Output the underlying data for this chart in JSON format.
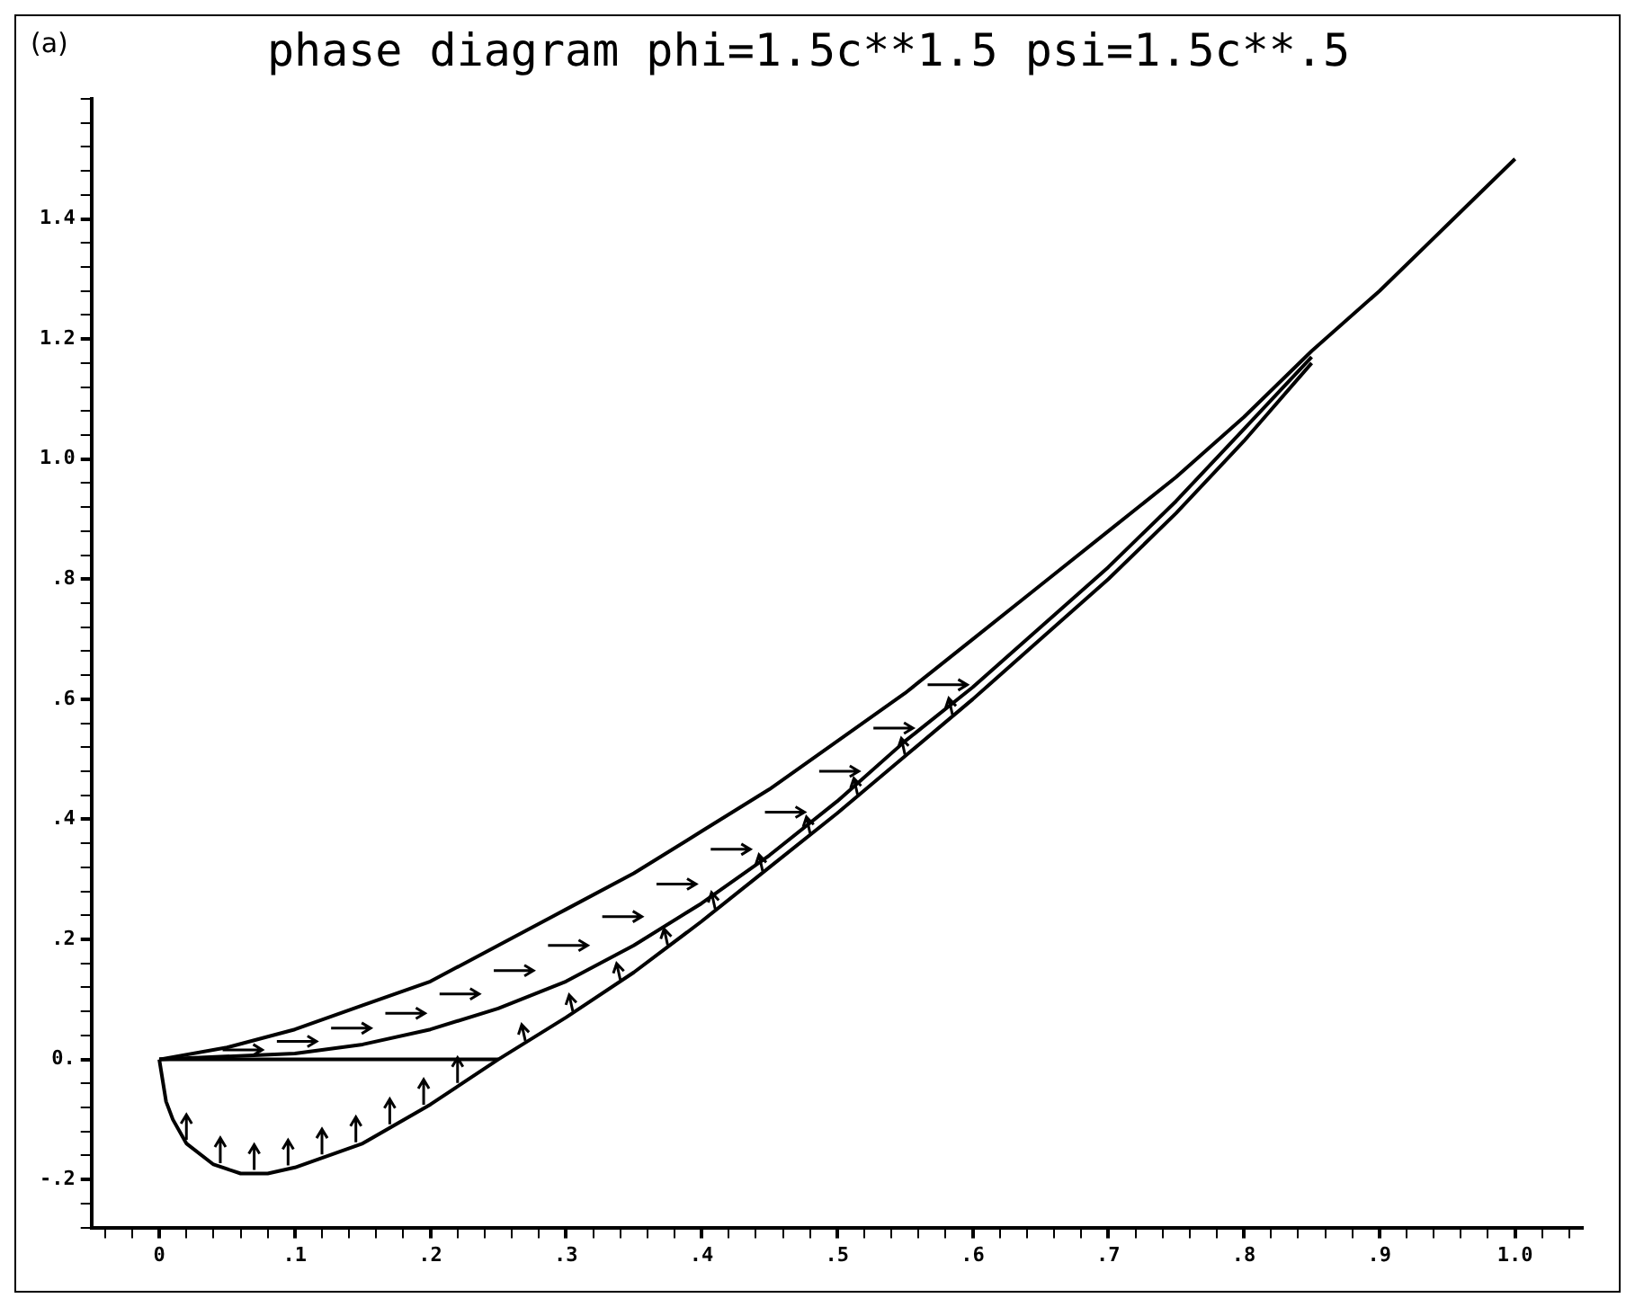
{
  "chart_data": {
    "type": "line",
    "title": "phase diagram phi=1.5c**1.5 psi=1.5c**.5",
    "annotations": [
      "(a)"
    ],
    "series": [
      {
        "color": "#000000",
        "x": [
          0,
          0.05,
          0.1,
          0.15,
          0.2,
          0.25,
          0.3,
          0.35,
          0.4,
          0.45,
          0.5,
          0.55,
          0.6,
          0.65,
          0.7,
          0.75,
          0.8,
          0.85,
          0.9,
          0.95,
          1.0
        ],
        "values": [
          0,
          0.02,
          0.05,
          0.09,
          0.13,
          0.19,
          0.25,
          0.31,
          0.38,
          0.45,
          0.53,
          0.61,
          0.7,
          0.79,
          0.88,
          0.97,
          1.07,
          1.18,
          1.28,
          1.39,
          1.5
        ]
      },
      {
        "color": "#000000",
        "x": [
          0,
          0.1,
          0.15,
          0.2,
          0.25,
          0.3,
          0.35,
          0.4,
          0.45,
          0.5,
          0.55,
          0.6,
          0.65,
          0.7,
          0.75,
          0.8,
          0.85
        ],
        "values": [
          0,
          0.01,
          0.025,
          0.05,
          0.085,
          0.13,
          0.19,
          0.26,
          0.34,
          0.43,
          0.53,
          0.62,
          0.72,
          0.82,
          0.93,
          1.05,
          1.17
        ]
      },
      {
        "color": "#000000",
        "x": [
          0,
          0.005,
          0.01,
          0.02,
          0.04,
          0.06,
          0.08,
          0.1,
          0.15,
          0.2,
          0.25,
          0.3,
          0.35,
          0.4,
          0.45,
          0.5,
          0.55,
          0.6,
          0.65,
          0.7,
          0.75,
          0.8,
          0.85
        ],
        "values": [
          0,
          -0.07,
          -0.1,
          -0.14,
          -0.175,
          -0.19,
          -0.19,
          -0.18,
          -0.14,
          -0.075,
          0,
          0.07,
          0.145,
          0.23,
          0.32,
          0.41,
          0.505,
          0.6,
          0.7,
          0.8,
          0.91,
          1.03,
          1.16
        ]
      },
      {
        "color": "#000000",
        "x": [
          0,
          0.25
        ],
        "values": [
          0,
          0
        ]
      }
    ],
    "xlim": [
      -0.05,
      1.05
    ],
    "ylim": [
      -0.28,
      1.6
    ],
    "xticks": [
      {
        "value": -0.04,
        "label": null
      },
      {
        "value": -0.02,
        "label": null
      },
      {
        "value": 0,
        "label": "0"
      },
      {
        "value": 0.02,
        "label": null
      },
      {
        "value": 0.04,
        "label": null
      },
      {
        "value": 0.06,
        "label": null
      },
      {
        "value": 0.08,
        "label": null
      },
      {
        "value": 0.1,
        "label": ".1"
      },
      {
        "value": 0.12,
        "label": null
      },
      {
        "value": 0.14,
        "label": null
      },
      {
        "value": 0.16,
        "label": null
      },
      {
        "value": 0.18,
        "label": null
      },
      {
        "value": 0.2,
        "label": ".2"
      },
      {
        "value": 0.22,
        "label": null
      },
      {
        "value": 0.24,
        "label": null
      },
      {
        "value": 0.26,
        "label": null
      },
      {
        "value": 0.28,
        "label": null
      },
      {
        "value": 0.3,
        "label": ".3"
      },
      {
        "value": 0.32,
        "label": null
      },
      {
        "value": 0.34,
        "label": null
      },
      {
        "value": 0.36,
        "label": null
      },
      {
        "value": 0.38,
        "label": null
      },
      {
        "value": 0.4,
        "label": ".4"
      },
      {
        "value": 0.42,
        "label": null
      },
      {
        "value": 0.44,
        "label": null
      },
      {
        "value": 0.46,
        "label": null
      },
      {
        "value": 0.48,
        "label": null
      },
      {
        "value": 0.5,
        "label": ".5"
      },
      {
        "value": 0.52,
        "label": null
      },
      {
        "value": 0.54,
        "label": null
      },
      {
        "value": 0.56,
        "label": null
      },
      {
        "value": 0.58,
        "label": null
      },
      {
        "value": 0.6,
        "label": ".6"
      },
      {
        "value": 0.62,
        "label": null
      },
      {
        "value": 0.64,
        "label": null
      },
      {
        "value": 0.66,
        "label": null
      },
      {
        "value": 0.68,
        "label": null
      },
      {
        "value": 0.7,
        "label": ".7"
      },
      {
        "value": 0.72,
        "label": null
      },
      {
        "value": 0.74,
        "label": null
      },
      {
        "value": 0.76,
        "label": null
      },
      {
        "value": 0.78,
        "label": null
      },
      {
        "value": 0.8,
        "label": ".8"
      },
      {
        "value": 0.82,
        "label": null
      },
      {
        "value": 0.84,
        "label": null
      },
      {
        "value": 0.86,
        "label": null
      },
      {
        "value": 0.88,
        "label": null
      },
      {
        "value": 0.9,
        "label": ".9"
      },
      {
        "value": 0.92,
        "label": null
      },
      {
        "value": 0.94,
        "label": null
      },
      {
        "value": 0.96,
        "label": null
      },
      {
        "value": 0.98,
        "label": null
      },
      {
        "value": 1.0,
        "label": "1.0"
      },
      {
        "value": 1.02,
        "label": null
      },
      {
        "value": 1.04,
        "label": null
      }
    ],
    "yticks": [
      {
        "value": -0.28,
        "label": null
      },
      {
        "value": -0.24,
        "label": null
      },
      {
        "value": -0.2,
        "label": "-.2"
      },
      {
        "value": -0.16,
        "label": null
      },
      {
        "value": -0.12,
        "label": null
      },
      {
        "value": -0.08,
        "label": null
      },
      {
        "value": -0.04,
        "label": null
      },
      {
        "value": 0,
        "label": "0."
      },
      {
        "value": 0.04,
        "label": null
      },
      {
        "value": 0.08,
        "label": null
      },
      {
        "value": 0.12,
        "label": null
      },
      {
        "value": 0.16,
        "label": null
      },
      {
        "value": 0.2,
        "label": ".2"
      },
      {
        "value": 0.24,
        "label": null
      },
      {
        "value": 0.28,
        "label": null
      },
      {
        "value": 0.32,
        "label": null
      },
      {
        "value": 0.36,
        "label": null
      },
      {
        "value": 0.4,
        "label": ".4"
      },
      {
        "value": 0.44,
        "label": null
      },
      {
        "value": 0.48,
        "label": null
      },
      {
        "value": 0.52,
        "label": null
      },
      {
        "value": 0.56,
        "label": null
      },
      {
        "value": 0.6,
        "label": ".6"
      },
      {
        "value": 0.64,
        "label": null
      },
      {
        "value": 0.68,
        "label": null
      },
      {
        "value": 0.72,
        "label": null
      },
      {
        "value": 0.76,
        "label": null
      },
      {
        "value": 0.8,
        "label": ".8"
      },
      {
        "value": 0.84,
        "label": null
      },
      {
        "value": 0.88,
        "label": null
      },
      {
        "value": 0.92,
        "label": null
      },
      {
        "value": 0.96,
        "label": null
      },
      {
        "value": 1.0,
        "label": "1.0"
      },
      {
        "value": 1.04,
        "label": null
      },
      {
        "value": 1.08,
        "label": null
      },
      {
        "value": 1.12,
        "label": null
      },
      {
        "value": 1.16,
        "label": null
      },
      {
        "value": 1.2,
        "label": "1.2"
      },
      {
        "value": 1.24,
        "label": null
      },
      {
        "value": 1.28,
        "label": null
      },
      {
        "value": 1.32,
        "label": null
      },
      {
        "value": 1.36,
        "label": null
      },
      {
        "value": 1.4,
        "label": "1.4"
      },
      {
        "value": 1.44,
        "label": null
      },
      {
        "value": 1.48,
        "label": null
      },
      {
        "value": 1.52,
        "label": null
      },
      {
        "value": 1.56,
        "label": null
      },
      {
        "value": 1.6,
        "label": null
      }
    ],
    "grid": false,
    "legend": false
  }
}
